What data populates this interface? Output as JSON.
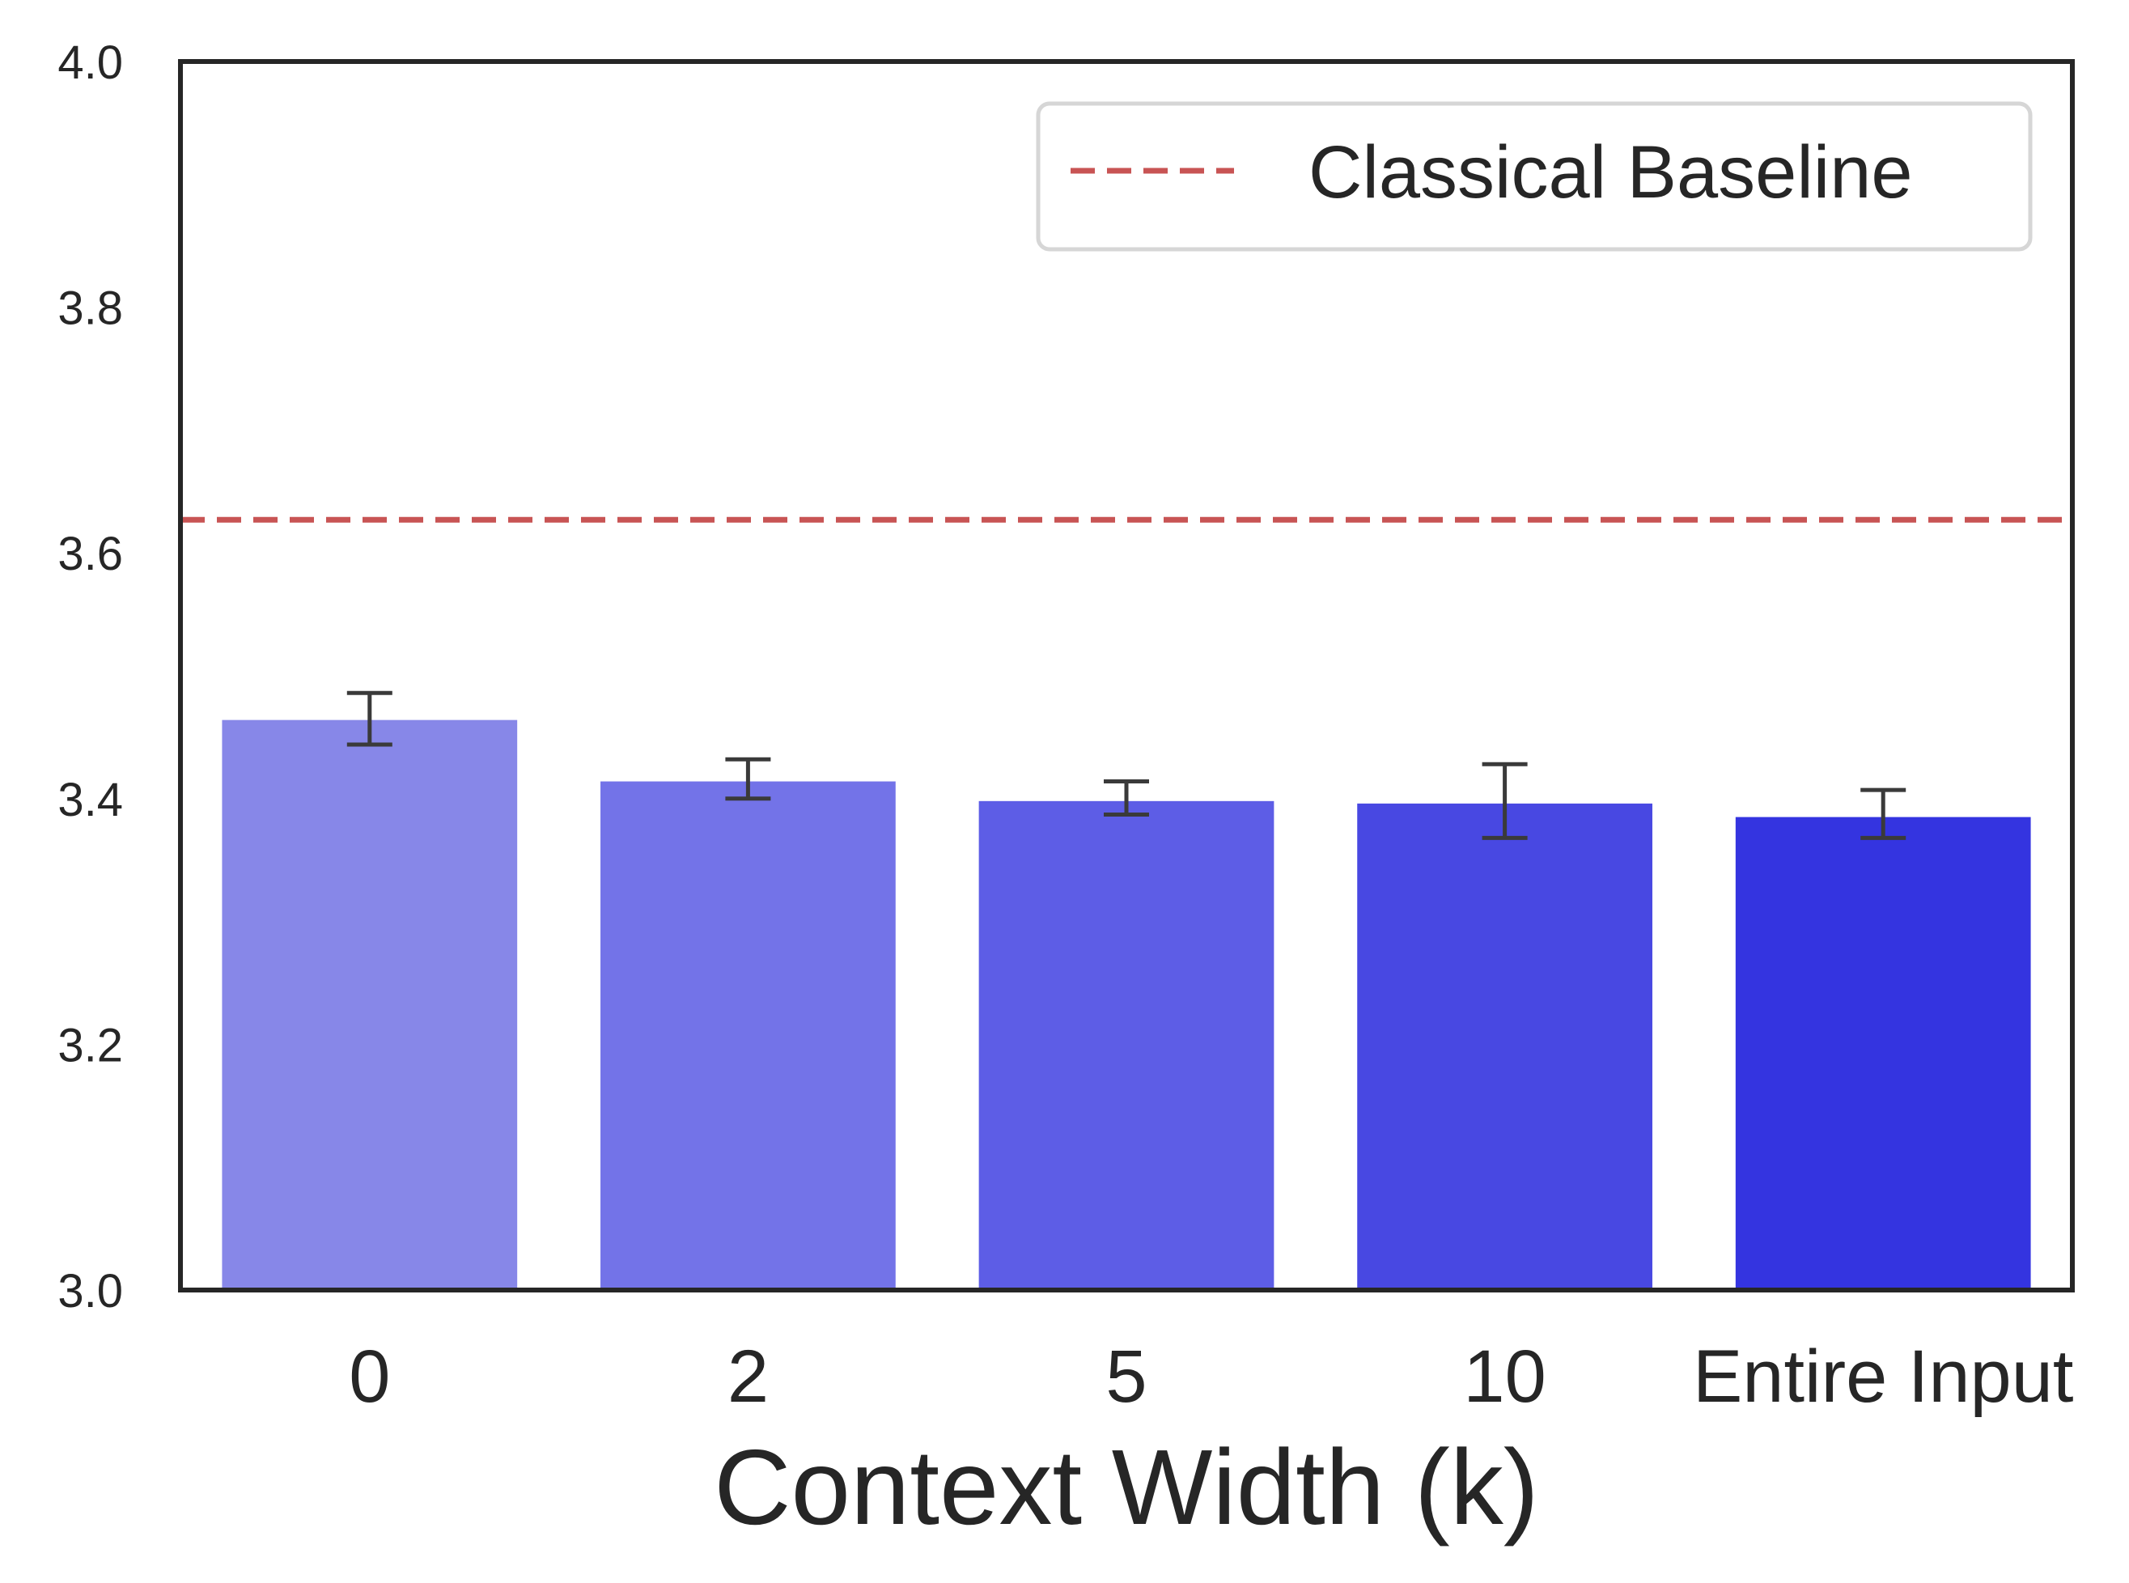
{
  "chart_data": {
    "type": "bar",
    "title": "",
    "xlabel": "Context Width (k)",
    "ylabel": "",
    "categories": [
      "0",
      "2",
      "5",
      "10",
      "Entire Input"
    ],
    "values": [
      3.464,
      3.414,
      3.398,
      3.396,
      3.385
    ],
    "error_low": [
      3.444,
      3.4,
      3.387,
      3.368,
      3.368
    ],
    "error_high": [
      3.486,
      3.432,
      3.414,
      3.428,
      3.407
    ],
    "bar_colors": [
      "#8787e8",
      "#7373e8",
      "#5d5de6",
      "#4848e2",
      "#3434e0"
    ],
    "ylim": [
      3.0,
      4.0
    ],
    "yticks": [
      "3.0",
      "3.2",
      "3.4",
      "3.6",
      "3.8",
      "4.0"
    ],
    "baseline": {
      "label": "Classical Baseline",
      "value": 3.627,
      "color": "#c85454"
    },
    "legend_position": "top-right",
    "grid": false
  }
}
